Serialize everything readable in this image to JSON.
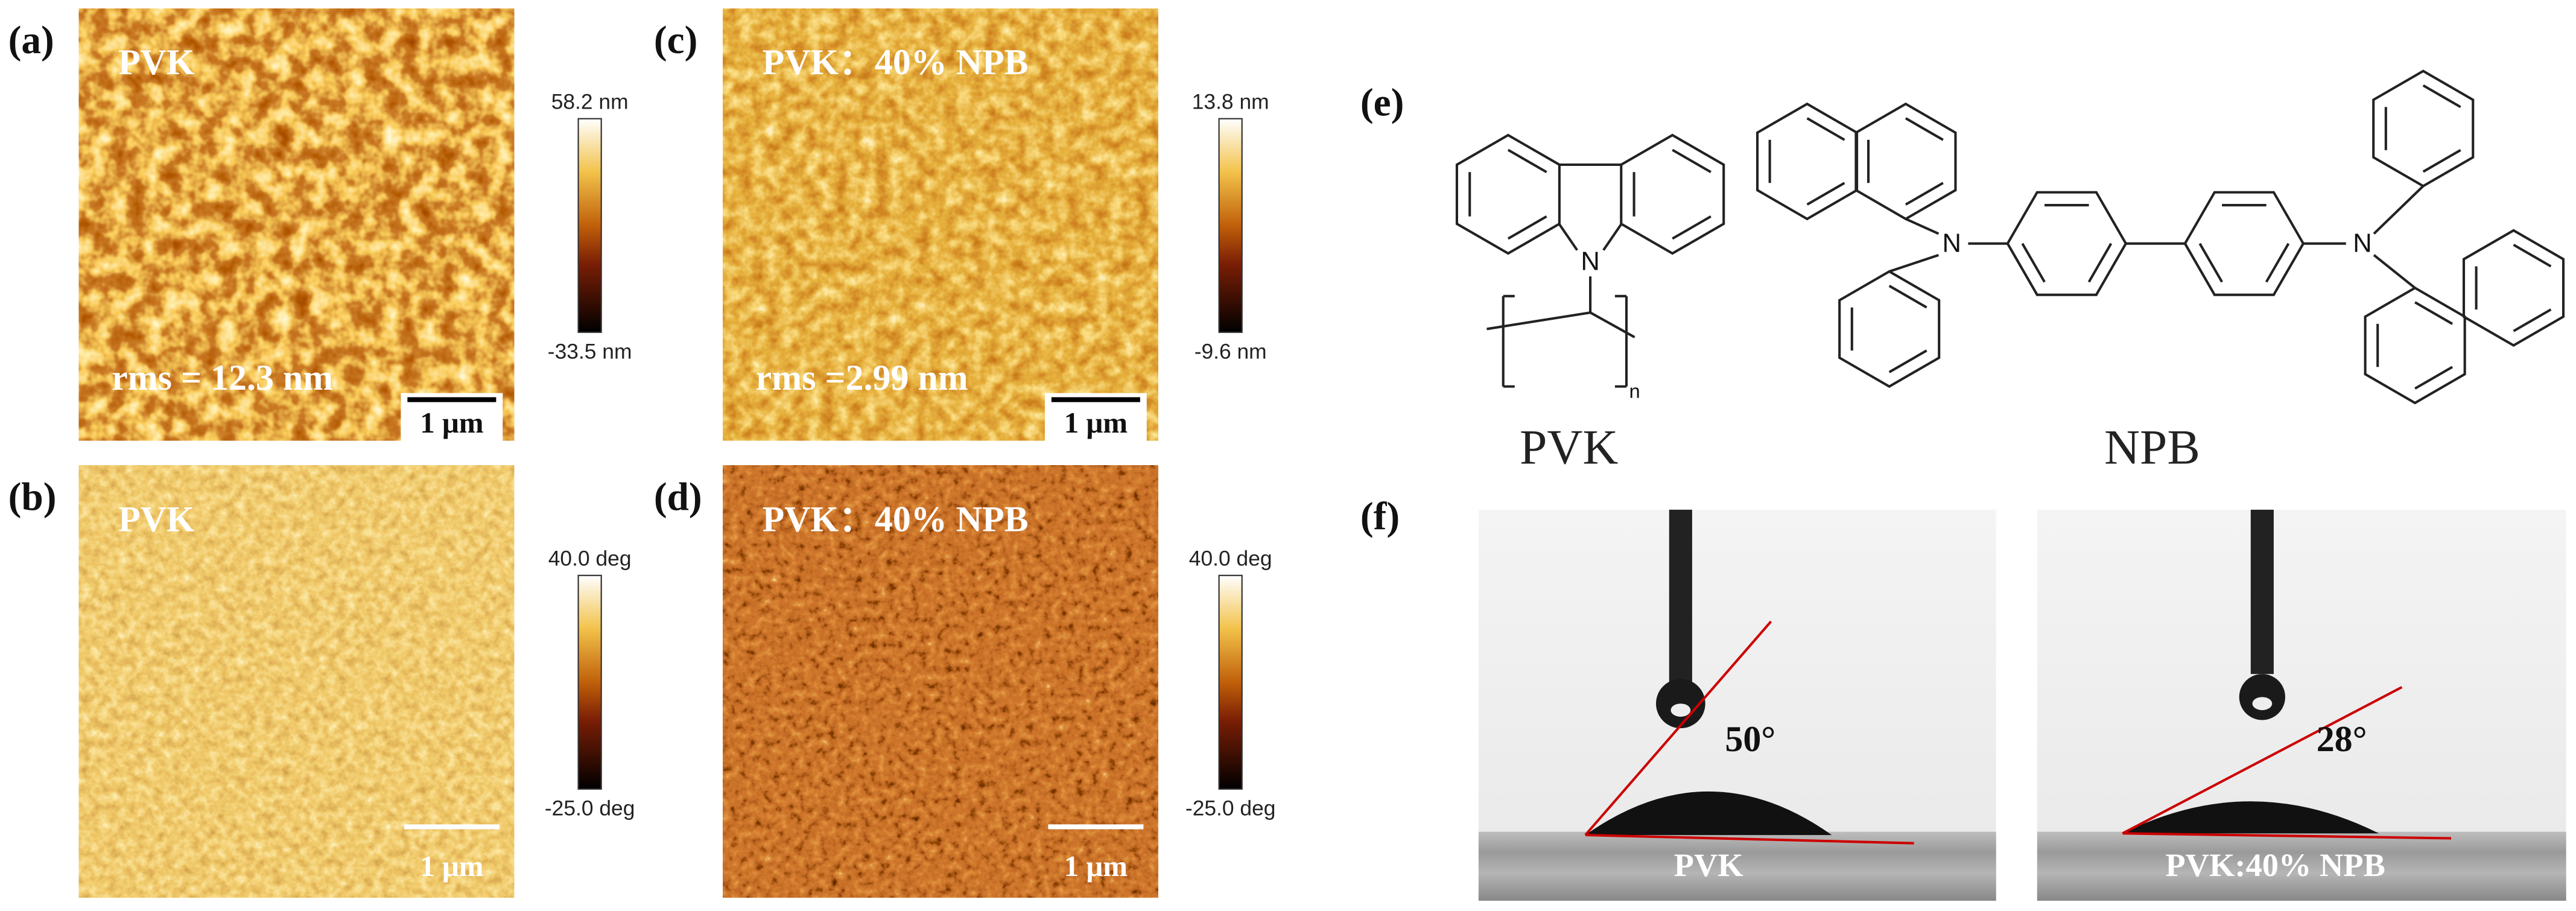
{
  "panels": [
    {
      "label": "(a)",
      "title": "PVK",
      "rms": "rms = 12.3 nm",
      "scale_bar": "1 μm",
      "colorbar": {
        "max": "58.2 nm",
        "min": "-33.5 nm"
      }
    },
    {
      "label": "(b)",
      "title": "PVK",
      "scale_bar": "1 μm",
      "colorbar": {
        "max": "40.0 deg",
        "min": "-25.0 deg"
      }
    },
    {
      "label": "(c)",
      "title": "PVK：40% NPB",
      "rms": "rms =2.99 nm",
      "scale_bar": "1 μm",
      "colorbar": {
        "max": "13.8 nm",
        "min": "-9.6 nm"
      }
    },
    {
      "label": "(d)",
      "title": "PVK：40% NPB",
      "scale_bar": "1 μm",
      "colorbar": {
        "max": "40.0 deg",
        "min": "-25.0 deg"
      }
    }
  ],
  "structures": {
    "label": "(e)",
    "molecules": [
      "PVK",
      "NPB"
    ],
    "atom_labels": [
      "N",
      "N",
      "N"
    ],
    "repeat_subscript": "n"
  },
  "contact_angle": {
    "label": "(f)",
    "samples": [
      {
        "name": "PVK",
        "angle": "50°"
      },
      {
        "name": "PVK:40% NPB",
        "angle": "28°"
      }
    ]
  }
}
